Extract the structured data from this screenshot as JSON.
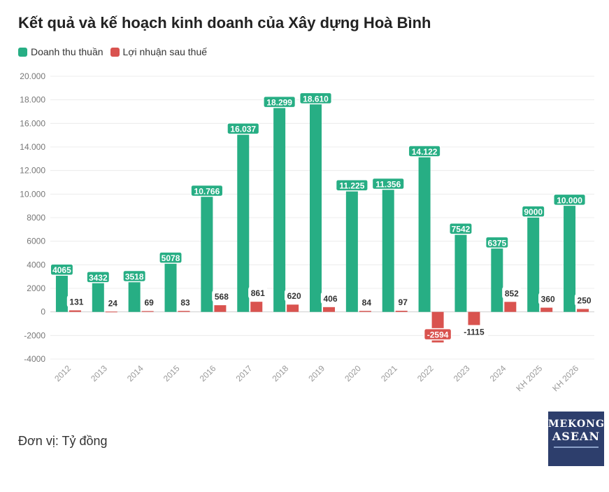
{
  "chart_data": {
    "type": "bar",
    "title": "Kết quả và kế hoạch kinh doanh của Xây dựng Hoà Bình",
    "categories": [
      "2012",
      "2013",
      "2014",
      "2015",
      "2016",
      "2017",
      "2018",
      "2019",
      "2020",
      "2021",
      "2022",
      "2023",
      "2024",
      "KH 2025",
      "KH 2026"
    ],
    "series": [
      {
        "name": "Doanh thu thuần",
        "color": "#27ae84",
        "values": [
          4065,
          3432,
          3518,
          5078,
          10766,
          16037,
          18299,
          18610,
          11225,
          11356,
          14122,
          7542,
          6375,
          9000,
          10000
        ],
        "labels": [
          "4065",
          "3432",
          "3518",
          "5078",
          "10.766",
          "16.037",
          "18.299",
          "18.610",
          "11.225",
          "11.356",
          "14.122",
          "7542",
          "6375",
          "9000",
          "10.000"
        ]
      },
      {
        "name": "Lợi nhuận sau thuế",
        "color": "#d9534f",
        "values": [
          131,
          24,
          69,
          83,
          568,
          861,
          620,
          406,
          84,
          97,
          -2594,
          -1115,
          852,
          360,
          250
        ],
        "labels": [
          "131",
          "24",
          "69",
          "83",
          "568",
          "861",
          "620",
          "406",
          "84",
          "97",
          "-2594",
          "-1115",
          "852",
          "360",
          "250"
        ]
      }
    ],
    "ylim": [
      -4000,
      20000
    ],
    "yticks": [
      -4000,
      -2000,
      0,
      2000,
      4000,
      6000,
      8000,
      10000,
      12000,
      14000,
      16000,
      18000,
      20000
    ],
    "ytick_labels": [
      "-4000",
      "-2000",
      "0",
      "2000",
      "4000",
      "6000",
      "8000",
      "10.000",
      "12.000",
      "14.000",
      "16.000",
      "18.000",
      "20.000"
    ],
    "xlabel": "",
    "ylabel": "",
    "legend": "top-left"
  },
  "unit_label": "Đơn vị: Tỷ đồng",
  "logo": {
    "line1": "MEKONG",
    "line2": "ASEAN"
  }
}
